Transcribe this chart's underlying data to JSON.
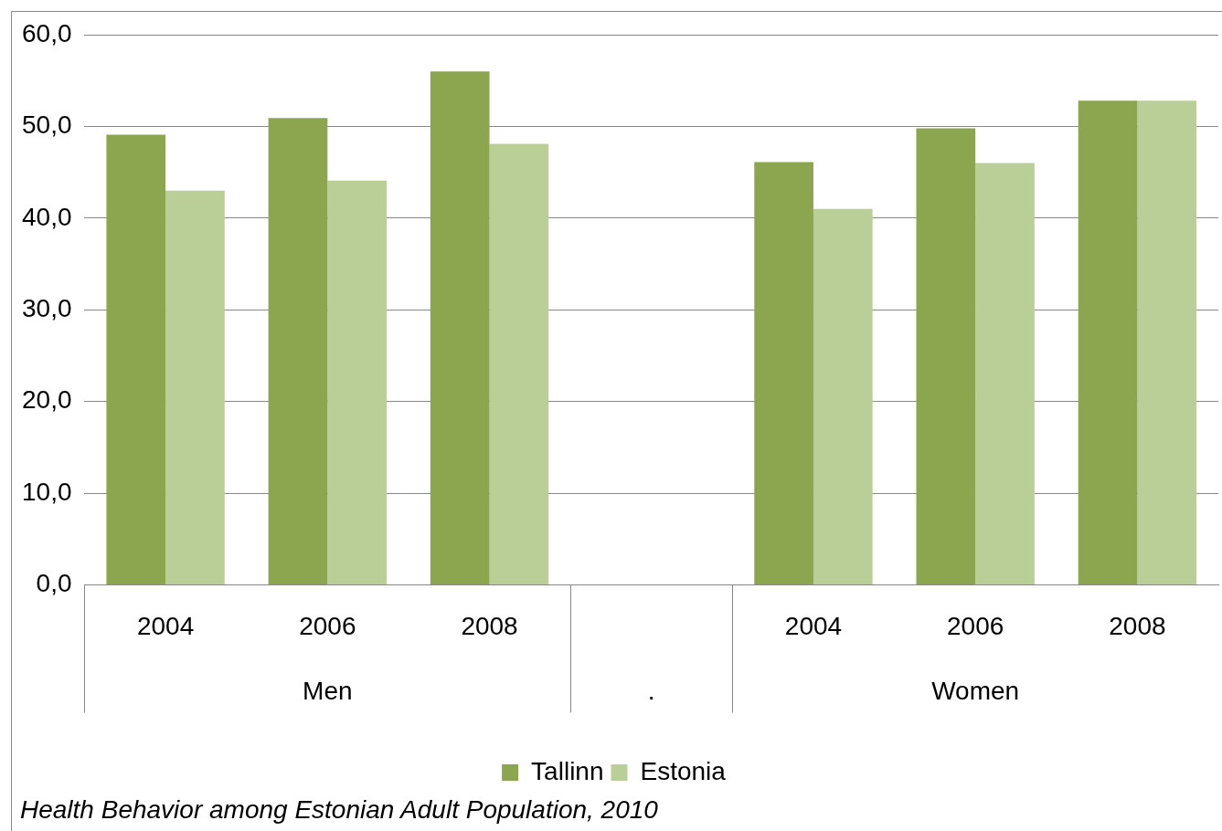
{
  "chart_data": {
    "type": "bar",
    "categories": [
      "2004",
      "2006",
      "2008",
      null,
      "2004",
      "2006",
      "2008"
    ],
    "series": [
      {
        "name": "Tallinn",
        "color": "#8ba64f",
        "values": [
          49.1,
          50.9,
          56.0,
          null,
          46.1,
          49.8,
          52.8
        ]
      },
      {
        "name": "Estonia",
        "color": "#bacf97",
        "values": [
          43.0,
          44.1,
          48.1,
          null,
          41.0,
          46.0,
          52.8
        ]
      }
    ],
    "ylim": [
      0,
      60
    ],
    "yticks": [
      {
        "value": 0,
        "label": "0,0"
      },
      {
        "value": 10,
        "label": "10,0"
      },
      {
        "value": 20,
        "label": "20,0"
      },
      {
        "value": 30,
        "label": "30,0"
      },
      {
        "value": 40,
        "label": "40,0"
      },
      {
        "value": 50,
        "label": "50,0"
      },
      {
        "value": 60,
        "label": "60,0"
      }
    ],
    "grid": "y",
    "legend": "bottom",
    "annotations": [
      "Men",
      ".",
      "Women",
      "Health Behavior among Estonian Adult Population, 2010"
    ]
  }
}
